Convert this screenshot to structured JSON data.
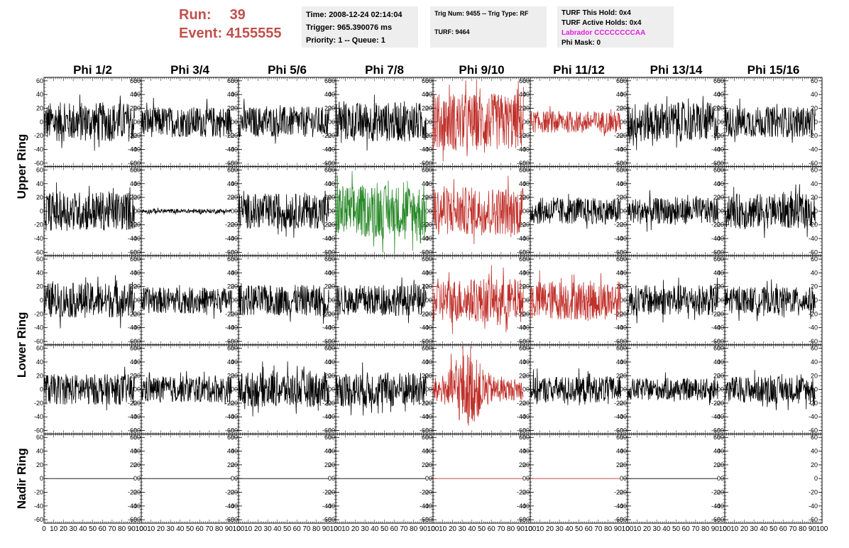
{
  "header": {
    "run_label": "Run:",
    "run_value": "39",
    "event_label": "Event:",
    "event_value": "4155555"
  },
  "info_boxes": {
    "time": "Time: 2008-12-24 02:14:04",
    "trigger": "Trigger: 965.390076 ms",
    "priority": "Priority: 1 -- Queue: 1",
    "trig_num": "Trig Num: 9455 -- Trig Type: RF",
    "turf": "TURF: 9464",
    "turf_this_hold": "TURF This Hold: 0x4",
    "turf_active_holds": "TURF Active Holds: 0x4",
    "labrador": "Labrador CCCCCCCCAA",
    "phi_mask": "Phi Mask: 0"
  },
  "colors": {
    "normal": "#000000",
    "triggered": "#c0302a",
    "green": "#2a8a2a",
    "accent": "#c0504d",
    "labrador": "#e020e0"
  },
  "chart_data": {
    "type": "line",
    "columns": [
      "Phi 1/2",
      "Phi 3/4",
      "Phi 5/6",
      "Phi 7/8",
      "Phi 9/10",
      "Phi 11/12",
      "Phi 13/14",
      "Phi 15/16"
    ],
    "rows": [
      "Upper Ring",
      "Upper Ring",
      "Lower Ring",
      "Lower Ring",
      "Nadir Ring"
    ],
    "row_labels": [
      {
        "text": "Upper Ring",
        "rows": [
          0,
          1
        ]
      },
      {
        "text": "Lower Ring",
        "rows": [
          2,
          3
        ]
      },
      {
        "text": "Nadir Ring",
        "rows": [
          4
        ]
      }
    ],
    "xlim": [
      0,
      100
    ],
    "ylim": [
      -65,
      65
    ],
    "y_ticks": [
      "60",
      "40",
      "20",
      "0",
      "-20",
      "-40",
      "-60"
    ],
    "x_ticks": [
      "0",
      "10",
      "20",
      "30",
      "40",
      "50",
      "60",
      "70",
      "80",
      "90",
      "100"
    ],
    "panel_style": [
      [
        "black",
        "black",
        "black",
        "black",
        "red",
        "red",
        "black",
        "black"
      ],
      [
        "black",
        "black",
        "black",
        "green",
        "red",
        "black",
        "black",
        "black"
      ],
      [
        "black",
        "black",
        "black",
        "black",
        "red",
        "red",
        "black",
        "black"
      ],
      [
        "black",
        "black",
        "black",
        "black",
        "red",
        "black",
        "black",
        "black"
      ],
      [
        "black",
        "black",
        "black",
        "black",
        "red",
        "red",
        "black",
        "none"
      ]
    ],
    "panel_amplitude": [
      [
        18,
        14,
        14,
        18,
        26,
        10,
        18,
        14
      ],
      [
        18,
        2,
        16,
        24,
        22,
        12,
        12,
        16
      ],
      [
        16,
        12,
        14,
        14,
        20,
        18,
        14,
        12
      ],
      [
        14,
        12,
        16,
        16,
        20,
        12,
        10,
        12
      ],
      [
        0,
        0,
        0,
        0,
        0,
        0,
        0,
        0
      ]
    ],
    "trace_x_end": 93
  }
}
